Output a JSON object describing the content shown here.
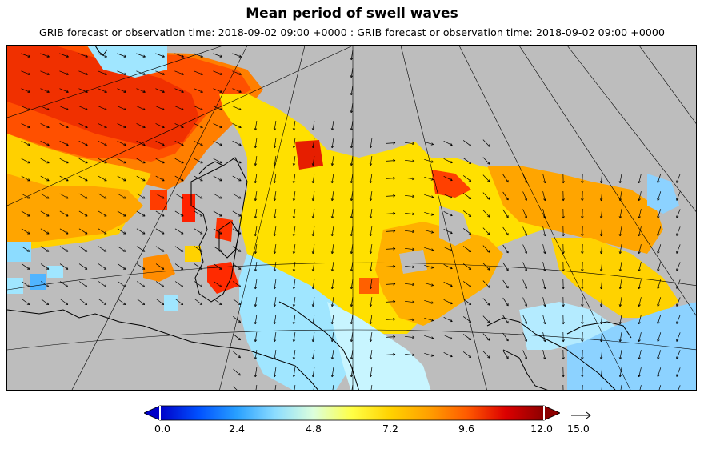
{
  "title": "Mean period of swell waves",
  "subtitle": "GRIB forecast or observation time: 2018-09-02 09:00 +0000 : GRIB forecast or observation time: 2018-09-02 09:00 +0000",
  "colorbar": {
    "ticks": [
      "0.0",
      "2.4",
      "4.8",
      "7.2",
      "9.6",
      "12.0"
    ],
    "min": 0.0,
    "max": 12.0,
    "colors": [
      "#0000c8",
      "#0050ff",
      "#28a0ff",
      "#8cdcff",
      "#dcffdc",
      "#ffff46",
      "#ffd200",
      "#ffa000",
      "#ff5a00",
      "#dc0000",
      "#8c0000"
    ]
  },
  "reference_arrow": {
    "label": "15.0"
  },
  "map": {
    "land_color": "#bdbdbd",
    "coast_color": "#000000",
    "grid_color": "#000000"
  }
}
